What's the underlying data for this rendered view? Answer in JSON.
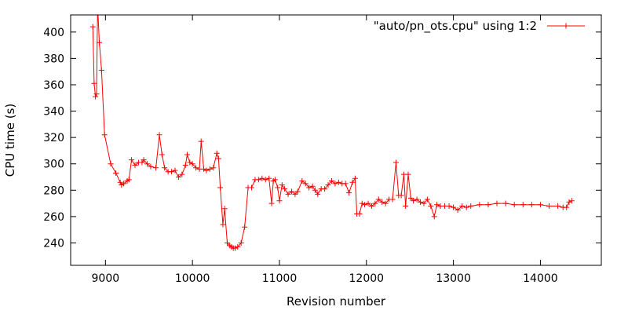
{
  "chart_data": {
    "type": "line",
    "xlabel": "Revision number",
    "ylabel": "CPU time (s)",
    "xlim": [
      8600,
      14700
    ],
    "ylim": [
      223,
      413
    ],
    "xticks": [
      9000,
      10000,
      11000,
      12000,
      13000,
      14000
    ],
    "yticks": [
      240,
      260,
      280,
      300,
      320,
      340,
      360,
      380,
      400
    ],
    "grid": false,
    "legend_position": "top-right",
    "colors": {
      "series": "#ff0000",
      "axes": "#000000",
      "background": "#ffffff"
    },
    "series": [
      {
        "name": "\"auto/pn_ots.cpu\" using 1:2",
        "marker": "plus",
        "points": [
          [
            8855,
            404
          ],
          [
            8870,
            361
          ],
          [
            8885,
            351
          ],
          [
            8898,
            353
          ],
          [
            8910,
            420
          ],
          [
            8930,
            392
          ],
          [
            8955,
            371
          ],
          [
            8990,
            322
          ],
          [
            9060,
            300
          ],
          [
            9120,
            293
          ],
          [
            9170,
            286
          ],
          [
            9185,
            284
          ],
          [
            9210,
            285
          ],
          [
            9250,
            287
          ],
          [
            9270,
            288
          ],
          [
            9300,
            303
          ],
          [
            9340,
            299
          ],
          [
            9380,
            301
          ],
          [
            9420,
            301
          ],
          [
            9440,
            303
          ],
          [
            9480,
            300
          ],
          [
            9520,
            298
          ],
          [
            9580,
            297
          ],
          [
            9620,
            322
          ],
          [
            9650,
            307
          ],
          [
            9680,
            297
          ],
          [
            9720,
            294
          ],
          [
            9760,
            294
          ],
          [
            9800,
            295
          ],
          [
            9840,
            290
          ],
          [
            9880,
            292
          ],
          [
            9920,
            299
          ],
          [
            9940,
            307
          ],
          [
            9970,
            301
          ],
          [
            10000,
            300
          ],
          [
            10040,
            297
          ],
          [
            10080,
            296
          ],
          [
            10100,
            317
          ],
          [
            10130,
            296
          ],
          [
            10160,
            295
          ],
          [
            10200,
            296
          ],
          [
            10240,
            297
          ],
          [
            10280,
            308
          ],
          [
            10300,
            304
          ],
          [
            10320,
            282
          ],
          [
            10350,
            254
          ],
          [
            10370,
            266
          ],
          [
            10400,
            240
          ],
          [
            10430,
            238
          ],
          [
            10450,
            237
          ],
          [
            10470,
            236
          ],
          [
            10490,
            236
          ],
          [
            10520,
            237
          ],
          [
            10560,
            240
          ],
          [
            10600,
            252
          ],
          [
            10640,
            282
          ],
          [
            10680,
            282
          ],
          [
            10720,
            288
          ],
          [
            10760,
            288
          ],
          [
            10800,
            289
          ],
          [
            10840,
            288
          ],
          [
            10880,
            289
          ],
          [
            10910,
            270
          ],
          [
            10930,
            287
          ],
          [
            10950,
            288
          ],
          [
            10980,
            282
          ],
          [
            11000,
            272
          ],
          [
            11030,
            284
          ],
          [
            11060,
            281
          ],
          [
            11100,
            277
          ],
          [
            11140,
            279
          ],
          [
            11180,
            277
          ],
          [
            11210,
            279
          ],
          [
            11260,
            287
          ],
          [
            11300,
            285
          ],
          [
            11340,
            282
          ],
          [
            11380,
            283
          ],
          [
            11410,
            280
          ],
          [
            11440,
            277
          ],
          [
            11480,
            281
          ],
          [
            11520,
            281
          ],
          [
            11560,
            284
          ],
          [
            11600,
            287
          ],
          [
            11640,
            285
          ],
          [
            11680,
            286
          ],
          [
            11720,
            285
          ],
          [
            11760,
            285
          ],
          [
            11800,
            278
          ],
          [
            11840,
            286
          ],
          [
            11870,
            289
          ],
          [
            11890,
            262
          ],
          [
            11920,
            262
          ],
          [
            11950,
            270
          ],
          [
            11980,
            269
          ],
          [
            12020,
            270
          ],
          [
            12060,
            268
          ],
          [
            12100,
            270
          ],
          [
            12140,
            273
          ],
          [
            12180,
            271
          ],
          [
            12220,
            270
          ],
          [
            12260,
            273
          ],
          [
            12300,
            273
          ],
          [
            12340,
            301
          ],
          [
            12370,
            276
          ],
          [
            12400,
            276
          ],
          [
            12430,
            292
          ],
          [
            12450,
            268
          ],
          [
            12480,
            292
          ],
          [
            12510,
            274
          ],
          [
            12540,
            272
          ],
          [
            12580,
            273
          ],
          [
            12620,
            271
          ],
          [
            12660,
            270
          ],
          [
            12700,
            273
          ],
          [
            12740,
            268
          ],
          [
            12780,
            260
          ],
          [
            12810,
            269
          ],
          [
            12850,
            268
          ],
          [
            12900,
            268
          ],
          [
            12950,
            268
          ],
          [
            13000,
            267
          ],
          [
            13050,
            265
          ],
          [
            13100,
            268
          ],
          [
            13150,
            267
          ],
          [
            13200,
            268
          ],
          [
            13300,
            269
          ],
          [
            13400,
            269
          ],
          [
            13500,
            270
          ],
          [
            13600,
            270
          ],
          [
            13700,
            269
          ],
          [
            13800,
            269
          ],
          [
            13900,
            269
          ],
          [
            14000,
            269
          ],
          [
            14100,
            268
          ],
          [
            14200,
            268
          ],
          [
            14260,
            267
          ],
          [
            14300,
            267
          ],
          [
            14330,
            271
          ],
          [
            14360,
            272
          ]
        ]
      }
    ]
  }
}
